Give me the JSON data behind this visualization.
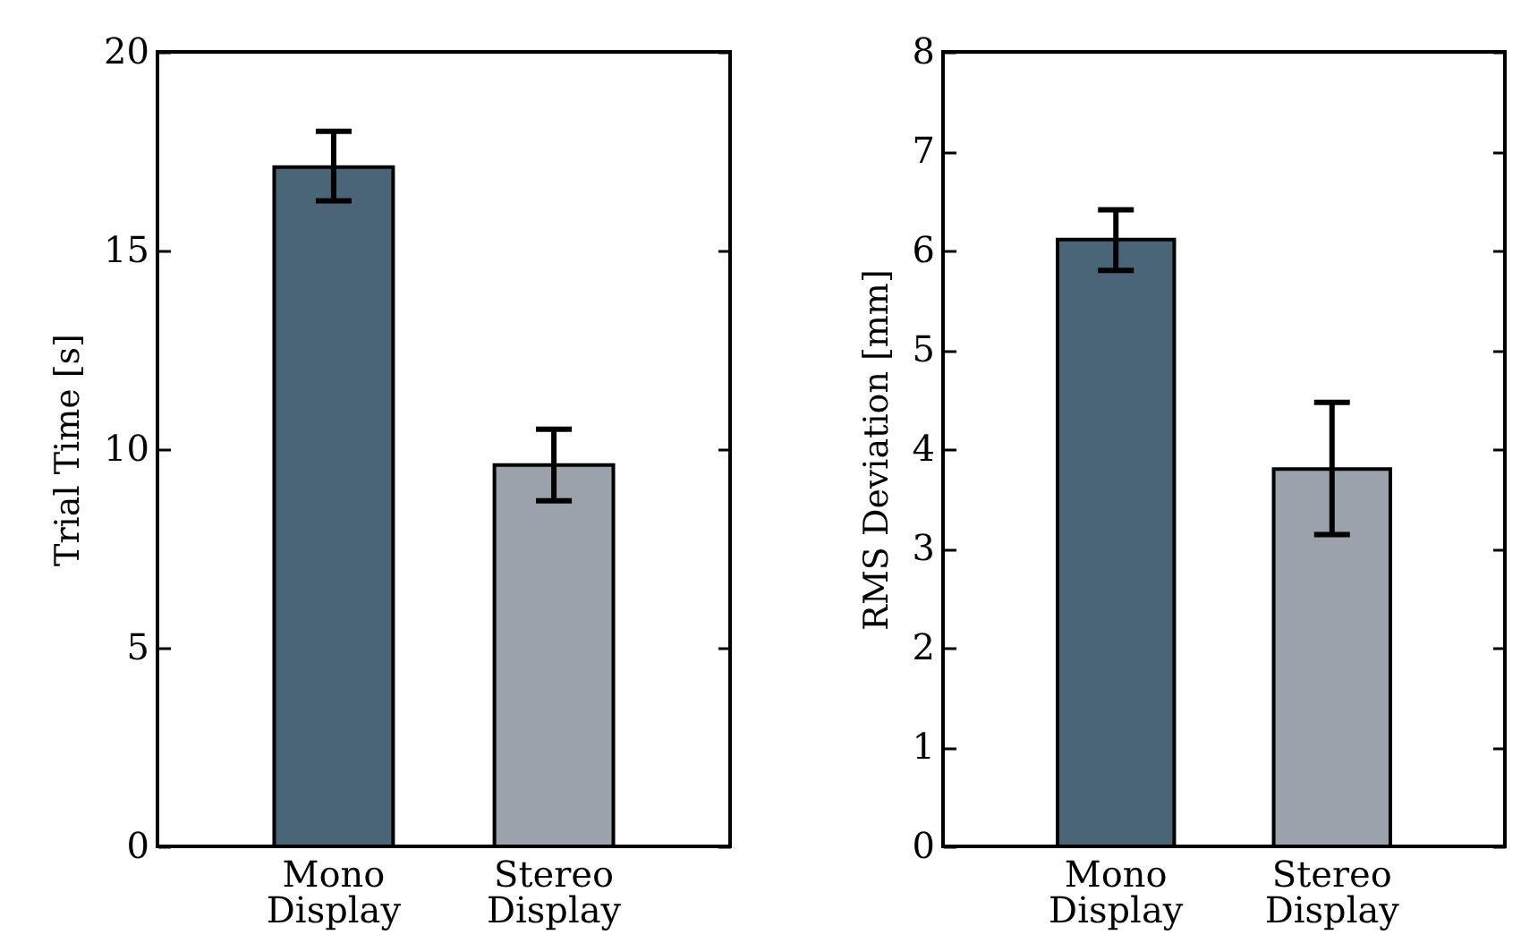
{
  "chart_data": [
    {
      "type": "bar",
      "ylabel": "Trial Time [s]",
      "categories": [
        "Mono\nDisplay",
        "Stereo\nDisplay"
      ],
      "values": [
        17.1,
        9.6
      ],
      "colors": [
        "#4a6478",
        "#9aa2ab"
      ],
      "errors": [
        [
          16.25,
          18.0
        ],
        [
          8.7,
          10.5
        ]
      ],
      "ylim": [
        0,
        20
      ],
      "yticks": [
        0,
        5,
        10,
        15,
        20
      ]
    },
    {
      "type": "bar",
      "ylabel": "RMS Deviation [mm]",
      "categories": [
        "Mono\nDisplay",
        "Stereo\nDisplay"
      ],
      "values": [
        6.11,
        3.8
      ],
      "colors": [
        "#4a6478",
        "#9aa2ab"
      ],
      "errors": [
        [
          5.8,
          6.41
        ],
        [
          3.14,
          4.47
        ]
      ],
      "ylim": [
        0,
        8
      ],
      "yticks": [
        0,
        1,
        2,
        3,
        4,
        5,
        6,
        7,
        8
      ]
    }
  ]
}
